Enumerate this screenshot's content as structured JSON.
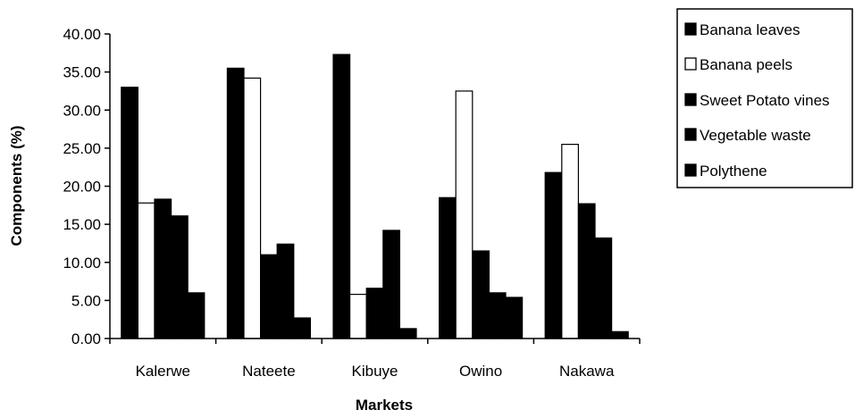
{
  "chart_data": {
    "type": "bar",
    "xlabel": "Markets",
    "ylabel": "Components (%)",
    "categories": [
      "Kalerwe",
      "Nateete",
      "Kibuye",
      "Owino",
      "Nakawa"
    ],
    "ylim": [
      0,
      40
    ],
    "yticks": [
      "0.00",
      "5.00",
      "10.00",
      "15.00",
      "20.00",
      "25.00",
      "30.00",
      "35.00",
      "40.00"
    ],
    "grid": false,
    "legend_position": "top-right",
    "series": [
      {
        "name": "Banana leaves",
        "color": "#000000",
        "values": [
          33.0,
          35.5,
          37.3,
          18.5,
          21.8
        ]
      },
      {
        "name": "Banana peels",
        "color": "#ffffff",
        "values": [
          17.8,
          34.2,
          5.8,
          32.5,
          25.5
        ]
      },
      {
        "name": "Sweet Potato vines",
        "color": "#000000",
        "values": [
          18.3,
          11.0,
          6.6,
          11.5,
          17.7
        ]
      },
      {
        "name": "Vegetable waste",
        "color": "#000000",
        "values": [
          16.1,
          12.4,
          14.2,
          6.0,
          13.2
        ]
      },
      {
        "name": "Polythene",
        "color": "#000000",
        "values": [
          6.0,
          2.7,
          1.3,
          5.4,
          0.9
        ]
      }
    ]
  }
}
